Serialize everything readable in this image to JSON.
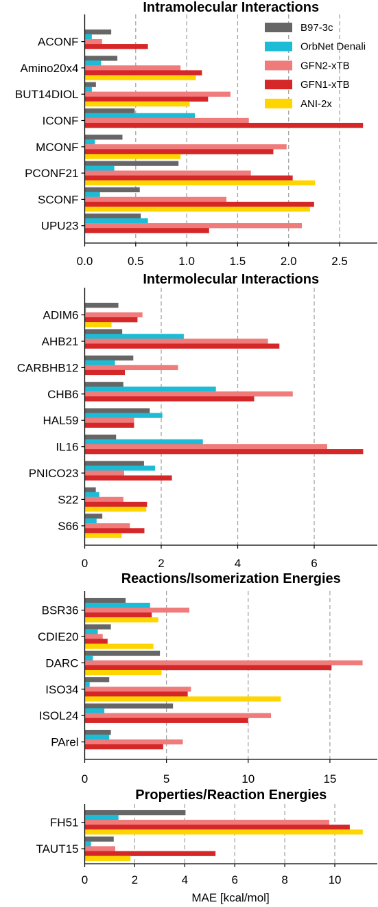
{
  "figure": {
    "xlabel": "MAE [kcal/mol]"
  },
  "legend": {
    "entries": [
      {
        "name": "B97-3c",
        "color": "#666666"
      },
      {
        "name": "OrbNet Denali",
        "color": "#1cbcd6"
      },
      {
        "name": "GFN2-xTB",
        "color": "#ef7b7b"
      },
      {
        "name": "GFN1-xTB",
        "color": "#d62728"
      },
      {
        "name": "ANI-2x",
        "color": "#ffd500"
      }
    ]
  },
  "chart_data": [
    {
      "type": "bar",
      "orientation": "horizontal",
      "title": "Intramolecular Interactions",
      "categories": [
        "ACONF",
        "Amino20x4",
        "BUT14DIOL",
        "ICONF",
        "MCONF",
        "PCONF21",
        "SCONF",
        "UPU23"
      ],
      "xlim": [
        0,
        2.87
      ],
      "xticks": [
        0.0,
        0.5,
        1.0,
        1.5,
        2.0,
        2.5
      ],
      "xtick_labels": [
        "0.0",
        "0.5",
        "1.0",
        "1.5",
        "2.0",
        "2.5"
      ],
      "grid": "vertical dashed",
      "legend": "top-right",
      "series": [
        {
          "name": "B97-3c",
          "values": [
            0.26,
            0.32,
            0.11,
            0.49,
            0.37,
            0.92,
            0.54,
            0.55
          ]
        },
        {
          "name": "OrbNet Denali",
          "values": [
            0.07,
            0.16,
            0.07,
            1.08,
            0.1,
            0.29,
            0.15,
            0.62
          ]
        },
        {
          "name": "GFN2-xTB",
          "values": [
            0.17,
            0.94,
            1.43,
            1.61,
            1.98,
            1.63,
            1.39,
            2.13
          ]
        },
        {
          "name": "GFN1-xTB",
          "values": [
            0.62,
            1.15,
            1.21,
            2.73,
            1.85,
            2.04,
            2.25,
            1.22
          ]
        },
        {
          "name": "ANI-2x",
          "values": [
            null,
            1.09,
            1.03,
            null,
            0.94,
            2.26,
            2.21,
            null
          ]
        }
      ]
    },
    {
      "type": "bar",
      "orientation": "horizontal",
      "title": "Intermolecular Interactions",
      "categories": [
        "ADIM6",
        "AHB21",
        "CARBHB12",
        "CHB6",
        "HAL59",
        "IL16",
        "PNICO23",
        "S22",
        "S66"
      ],
      "xlim": [
        0,
        7.65
      ],
      "xticks": [
        0,
        2,
        4,
        6
      ],
      "xtick_labels": [
        "0",
        "2",
        "4",
        "6"
      ],
      "grid": "vertical dashed",
      "series": [
        {
          "name": "B97-3c",
          "values": [
            0.88,
            0.98,
            1.27,
            1.01,
            1.7,
            0.82,
            1.55,
            0.29,
            0.46
          ]
        },
        {
          "name": "OrbNet Denali",
          "values": [
            0.03,
            2.59,
            0.79,
            3.43,
            2.03,
            3.09,
            1.84,
            0.38,
            0.31
          ]
        },
        {
          "name": "GFN2-xTB",
          "values": [
            1.51,
            4.79,
            2.44,
            5.44,
            1.29,
            6.34,
            1.03,
            1.01,
            1.18
          ]
        },
        {
          "name": "GFN1-xTB",
          "values": [
            1.38,
            5.09,
            1.05,
            4.43,
            1.29,
            7.28,
            2.28,
            1.63,
            1.56
          ]
        },
        {
          "name": "ANI-2x",
          "values": [
            0.7,
            null,
            null,
            null,
            null,
            null,
            null,
            1.61,
            0.97
          ]
        }
      ]
    },
    {
      "type": "bar",
      "orientation": "horizontal",
      "title": "Reactions/Isomerization Energies",
      "categories": [
        "BSR36",
        "CDIE20",
        "DARC",
        "ISO34",
        "ISOL24",
        "PArel"
      ],
      "xlim": [
        0,
        17.9
      ],
      "xticks": [
        0,
        5,
        10,
        15
      ],
      "xtick_labels": [
        "0",
        "5",
        "10",
        "15"
      ],
      "grid": "vertical dashed",
      "series": [
        {
          "name": "B97-3c",
          "values": [
            2.5,
            1.6,
            4.6,
            1.5,
            5.4,
            1.6
          ]
        },
        {
          "name": "OrbNet Denali",
          "values": [
            4.0,
            0.8,
            0.5,
            0.3,
            1.2,
            1.5
          ]
        },
        {
          "name": "GFN2-xTB",
          "values": [
            6.4,
            1.1,
            17.0,
            6.5,
            11.4,
            6.0
          ]
        },
        {
          "name": "GFN1-xTB",
          "values": [
            4.1,
            1.4,
            15.1,
            6.3,
            10.0,
            4.8
          ]
        },
        {
          "name": "ANI-2x",
          "values": [
            4.5,
            4.2,
            4.7,
            12.0,
            null,
            null
          ]
        }
      ]
    },
    {
      "type": "bar",
      "orientation": "horizontal",
      "title": "Properties/Reaction Energies",
      "categories": [
        "FH51",
        "TAUT15"
      ],
      "xlim": [
        0,
        11.7
      ],
      "xticks": [
        0,
        2,
        4,
        6,
        8,
        10
      ],
      "xtick_labels": [
        "0",
        "2",
        "4",
        "6",
        "8",
        "10"
      ],
      "grid": "vertical dashed",
      "series": [
        {
          "name": "B97-3c",
          "values": [
            4.03,
            1.16
          ]
        },
        {
          "name": "OrbNet Denali",
          "values": [
            1.35,
            0.25
          ]
        },
        {
          "name": "GFN2-xTB",
          "values": [
            9.78,
            1.22
          ]
        },
        {
          "name": "GFN1-xTB",
          "values": [
            10.6,
            5.23
          ]
        },
        {
          "name": "ANI-2x",
          "values": [
            11.12,
            1.83
          ]
        }
      ]
    }
  ]
}
